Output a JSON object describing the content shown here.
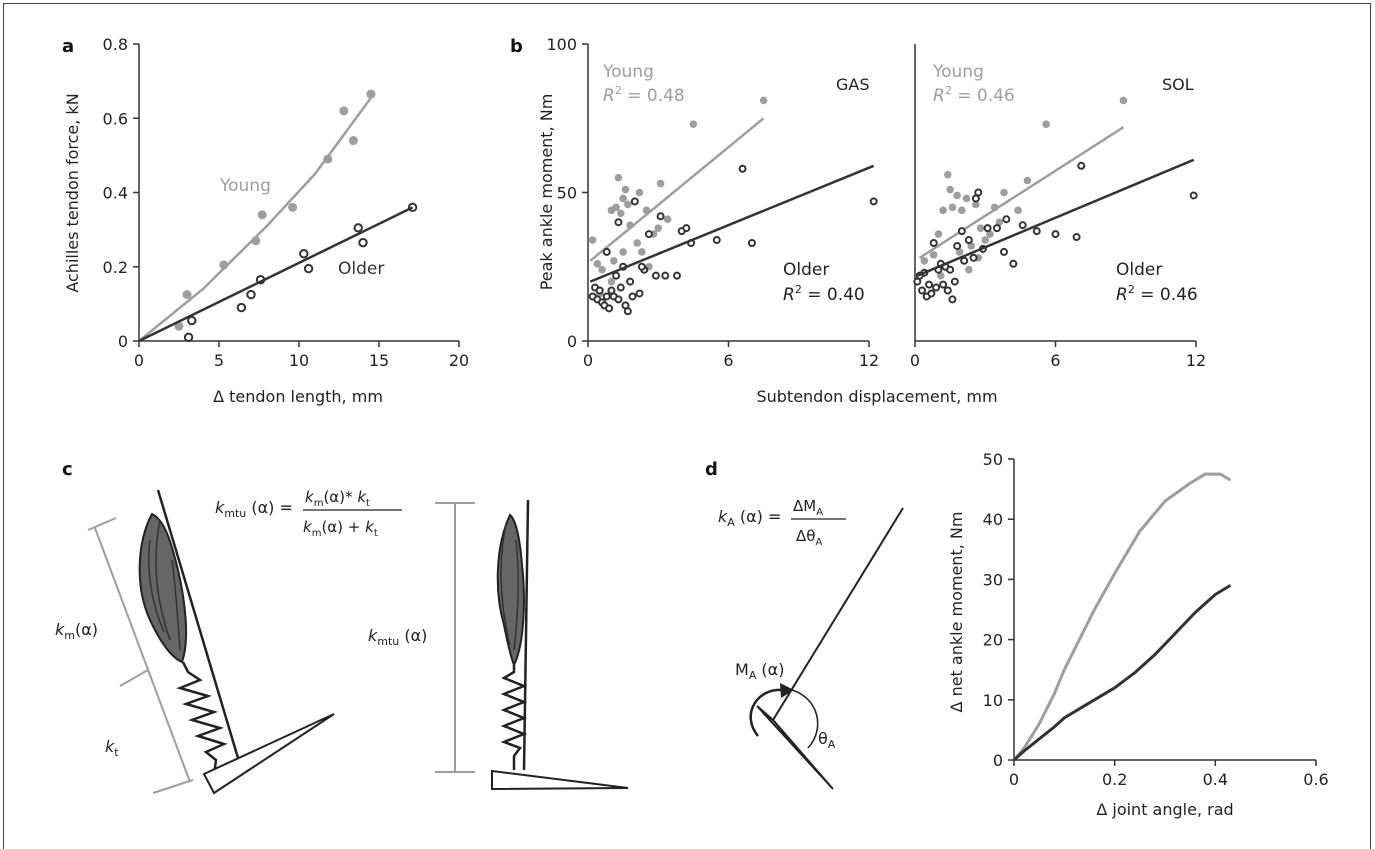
{
  "colors": {
    "young": "#9e9e9e",
    "older": "#333333",
    "axis": "#333333",
    "muscle": "#666666"
  },
  "panels": {
    "a": {
      "label": "a"
    },
    "b": {
      "label": "b"
    },
    "c": {
      "label": "c"
    },
    "d": {
      "label": "d"
    }
  },
  "chart_data": [
    {
      "id": "a",
      "type": "scatter",
      "xlabel": "Δ tendon length, mm",
      "ylabel": "Achilles tendon force, kN",
      "xlim": [
        0,
        20
      ],
      "ylim": [
        0,
        0.8
      ],
      "xticks": [
        0,
        5,
        10,
        15,
        20
      ],
      "yticks": [
        0,
        0.2,
        0.4,
        0.6,
        0.8
      ],
      "ytick_labels": [
        "0",
        "0.2",
        "0.4",
        "0.6",
        "0.8"
      ],
      "series": [
        {
          "name": "Young",
          "points": [
            [
              2.5,
              0.04
            ],
            [
              3,
              0.125
            ],
            [
              5.3,
              0.205
            ],
            [
              7.3,
              0.27
            ],
            [
              7.7,
              0.34
            ],
            [
              9.6,
              0.36
            ],
            [
              11.8,
              0.49
            ],
            [
              12.8,
              0.62
            ],
            [
              13.4,
              0.54
            ],
            [
              14.5,
              0.665
            ]
          ],
          "fit": [
            [
              0,
              0
            ],
            [
              4,
              0.14
            ],
            [
              8,
              0.31
            ],
            [
              11,
              0.45
            ],
            [
              14.5,
              0.655
            ]
          ]
        },
        {
          "name": "Older",
          "points": [
            [
              3.1,
              0.01
            ],
            [
              3.3,
              0.055
            ],
            [
              6.4,
              0.09
            ],
            [
              7,
              0.125
            ],
            [
              7.6,
              0.165
            ],
            [
              10.3,
              0.235
            ],
            [
              10.6,
              0.195
            ],
            [
              13.7,
              0.305
            ],
            [
              14,
              0.265
            ],
            [
              17.1,
              0.36
            ]
          ],
          "fit": [
            [
              0,
              0
            ],
            [
              17.1,
              0.36
            ]
          ]
        }
      ],
      "annotations": [
        "Young",
        "Older"
      ]
    },
    {
      "id": "b-gas",
      "type": "scatter",
      "xlabel": "Subtendon displacement, mm",
      "ylabel": "Peak ankle moment, Nm",
      "xlim": [
        0,
        12
      ],
      "ylim": [
        0,
        100
      ],
      "xticks": [
        0,
        6,
        12
      ],
      "yticks": [
        0,
        50,
        100
      ],
      "label": "GAS",
      "series": [
        {
          "name": "Young",
          "r2": "0.48",
          "points": [
            [
              0.2,
              34
            ],
            [
              0.4,
              26
            ],
            [
              0.6,
              24
            ],
            [
              0.8,
              30
            ],
            [
              1,
              44
            ],
            [
              1.2,
              45
            ],
            [
              1.3,
              55
            ],
            [
              1.4,
              43
            ],
            [
              1.5,
              48
            ],
            [
              1.6,
              51
            ],
            [
              1.7,
              46
            ],
            [
              1.8,
              39
            ],
            [
              2,
              47
            ],
            [
              2.2,
              50
            ],
            [
              2.5,
              44
            ],
            [
              2.8,
              36
            ],
            [
              3.1,
              53
            ],
            [
              3.4,
              41
            ],
            [
              1,
              20
            ],
            [
              1.5,
              30
            ],
            [
              2.1,
              33
            ],
            [
              2.6,
              25
            ],
            [
              3,
              38
            ],
            [
              4.5,
              73
            ],
            [
              7.5,
              81
            ],
            [
              0.5,
              16
            ],
            [
              1.1,
              27
            ],
            [
              2.3,
              30
            ]
          ],
          "fit": [
            [
              0.1,
              27
            ],
            [
              7.5,
              75
            ]
          ]
        },
        {
          "name": "Older",
          "r2": "0.40",
          "points": [
            [
              0.2,
              15
            ],
            [
              0.3,
              18
            ],
            [
              0.4,
              14
            ],
            [
              0.5,
              17
            ],
            [
              0.6,
              13
            ],
            [
              0.7,
              12
            ],
            [
              0.8,
              15
            ],
            [
              0.9,
              11
            ],
            [
              1,
              17
            ],
            [
              1.1,
              15
            ],
            [
              1.2,
              22
            ],
            [
              1.3,
              14
            ],
            [
              1.4,
              18
            ],
            [
              1.5,
              25
            ],
            [
              1.6,
              12
            ],
            [
              1.7,
              10
            ],
            [
              1.8,
              20
            ],
            [
              1.9,
              15
            ],
            [
              2,
              47
            ],
            [
              2.2,
              16
            ],
            [
              2.4,
              24
            ],
            [
              2.6,
              36
            ],
            [
              2.9,
              22
            ],
            [
              3.1,
              42
            ],
            [
              3.3,
              22
            ],
            [
              3.8,
              22
            ],
            [
              4,
              37
            ],
            [
              4.4,
              33
            ],
            [
              5.5,
              34
            ],
            [
              6.6,
              58
            ],
            [
              7,
              33
            ],
            [
              12.2,
              47
            ],
            [
              0.8,
              30
            ],
            [
              1.3,
              40
            ],
            [
              2.3,
              25
            ],
            [
              4.2,
              38
            ]
          ],
          "fit": [
            [
              0.1,
              20
            ],
            [
              12.2,
              59
            ]
          ]
        }
      ]
    },
    {
      "id": "b-sol",
      "type": "scatter",
      "xlim": [
        0,
        12
      ],
      "ylim": [
        0,
        100
      ],
      "xticks": [
        0,
        6,
        12
      ],
      "label": "SOL",
      "series": [
        {
          "name": "Young",
          "r2": "0.46",
          "points": [
            [
              0.4,
              27
            ],
            [
              0.8,
              29
            ],
            [
              1,
              36
            ],
            [
              1.2,
              44
            ],
            [
              1.4,
              56
            ],
            [
              1.5,
              51
            ],
            [
              1.6,
              45
            ],
            [
              1.8,
              49
            ],
            [
              2,
              44
            ],
            [
              2.2,
              48
            ],
            [
              2.4,
              32
            ],
            [
              2.6,
              46
            ],
            [
              2.8,
              38
            ],
            [
              3,
              34
            ],
            [
              3.2,
              36
            ],
            [
              3.4,
              45
            ],
            [
              3.6,
              40
            ],
            [
              3.8,
              50
            ],
            [
              1.9,
              30
            ],
            [
              2.3,
              24
            ],
            [
              4.4,
              44
            ],
            [
              5.6,
              73
            ],
            [
              8.9,
              81
            ],
            [
              1.1,
              22
            ],
            [
              2.7,
              28
            ],
            [
              4.8,
              54
            ]
          ],
          "fit": [
            [
              0.2,
              28
            ],
            [
              8.9,
              72
            ]
          ]
        },
        {
          "name": "Older",
          "r2": "0.46",
          "points": [
            [
              0.1,
              20
            ],
            [
              0.2,
              22
            ],
            [
              0.3,
              17
            ],
            [
              0.4,
              23
            ],
            [
              0.5,
              15
            ],
            [
              0.6,
              19
            ],
            [
              0.7,
              16
            ],
            [
              0.8,
              33
            ],
            [
              0.9,
              18
            ],
            [
              1,
              24
            ],
            [
              1.1,
              26
            ],
            [
              1.2,
              19
            ],
            [
              1.3,
              25
            ],
            [
              1.4,
              17
            ],
            [
              1.5,
              24
            ],
            [
              1.6,
              14
            ],
            [
              1.7,
              20
            ],
            [
              1.8,
              32
            ],
            [
              2,
              37
            ],
            [
              2.1,
              27
            ],
            [
              2.3,
              34
            ],
            [
              2.5,
              28
            ],
            [
              2.7,
              50
            ],
            [
              2.9,
              31
            ],
            [
              3.1,
              38
            ],
            [
              3.5,
              38
            ],
            [
              3.8,
              30
            ],
            [
              4.2,
              26
            ],
            [
              4.6,
              39
            ],
            [
              5.2,
              37
            ],
            [
              6,
              36
            ],
            [
              6.9,
              35
            ],
            [
              7.1,
              59
            ],
            [
              11.9,
              49
            ],
            [
              2.6,
              48
            ],
            [
              3.9,
              41
            ]
          ],
          "fit": [
            [
              0.1,
              22
            ],
            [
              11.9,
              61
            ]
          ]
        }
      ]
    },
    {
      "id": "d",
      "type": "line",
      "xlabel": "Δ joint angle, rad",
      "ylabel": "Δ net ankle moment, Nm",
      "xlim": [
        0,
        0.6
      ],
      "ylim": [
        0,
        50
      ],
      "xticks": [
        0,
        0.2,
        0.4,
        0.6
      ],
      "yticks": [
        0,
        10,
        20,
        30,
        40,
        50
      ],
      "series": [
        {
          "name": "",
          "x": [
            0,
            0.02,
            0.05,
            0.08,
            0.1,
            0.13,
            0.16,
            0.2,
            0.25,
            0.3,
            0.35,
            0.38,
            0.41,
            0.43
          ],
          "y": [
            0,
            2,
            6,
            11,
            15,
            20,
            25,
            31,
            38,
            43,
            46,
            47.5,
            47.5,
            46.5
          ]
        },
        {
          "name": "",
          "x": [
            0,
            0.02,
            0.05,
            0.08,
            0.1,
            0.13,
            0.16,
            0.2,
            0.24,
            0.28,
            0.32,
            0.36,
            0.4,
            0.43
          ],
          "y": [
            0,
            1.5,
            3.5,
            5.5,
            7,
            8.5,
            10,
            12,
            14.5,
            17.5,
            21,
            24.5,
            27.5,
            29
          ]
        }
      ]
    }
  ],
  "diagram_c": {
    "eq_lhs_k": "k",
    "eq_lhs_sub": "mtu",
    "eq_lhs_arg": " (α) =",
    "eq_num_k1": "k",
    "eq_num_sub1": "m",
    "eq_num_mid": "(α)* ",
    "eq_num_k2": "k",
    "eq_num_sub2": "t",
    "eq_den_k1": "k",
    "eq_den_sub1": "m",
    "eq_den_mid": "(α) + ",
    "eq_den_k2": "k",
    "eq_den_sub2": "t",
    "km_k": "k",
    "km_sub": "m",
    "km_arg": "(α)",
    "kt_k": "k",
    "kt_sub": "t",
    "kmtu_k": "k",
    "kmtu_sub": "mtu",
    "kmtu_arg": " (α)"
  },
  "diagram_d": {
    "ka_k": "k",
    "ka_sub": "A",
    "ka_arg": " (α) =",
    "ka_num": "ΔM",
    "ka_num_sub": "A",
    "ka_den": "Δθ",
    "ka_den_sub": "A",
    "ma_label": "M",
    "ma_sub": "A",
    "ma_arg": " (α)",
    "theta_label": "θ",
    "theta_sub": "A"
  }
}
